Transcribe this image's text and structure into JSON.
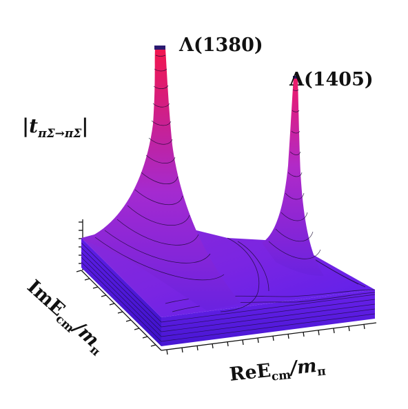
{
  "labels": {
    "peak_left": "Λ(1380)",
    "peak_right": "Λ(1405)",
    "z_axis": "|t",
    "z_axis_sub": "πΣ→πΣ",
    "z_axis_end": "|",
    "y_axis": "ImE",
    "y_axis_sub": "cm",
    "y_axis_end": "/m",
    "y_axis_end_sub": "π",
    "x_axis": "ReE",
    "x_axis_sub": "cm",
    "x_axis_end": "/m",
    "x_axis_end_sub": "π"
  },
  "colors": {
    "surface_low": "#5a1fe8",
    "surface_mid": "#9e2bd6",
    "surface_high": "#f0185a",
    "contour": "#1a0a33",
    "slab": "#4a17d9"
  }
}
